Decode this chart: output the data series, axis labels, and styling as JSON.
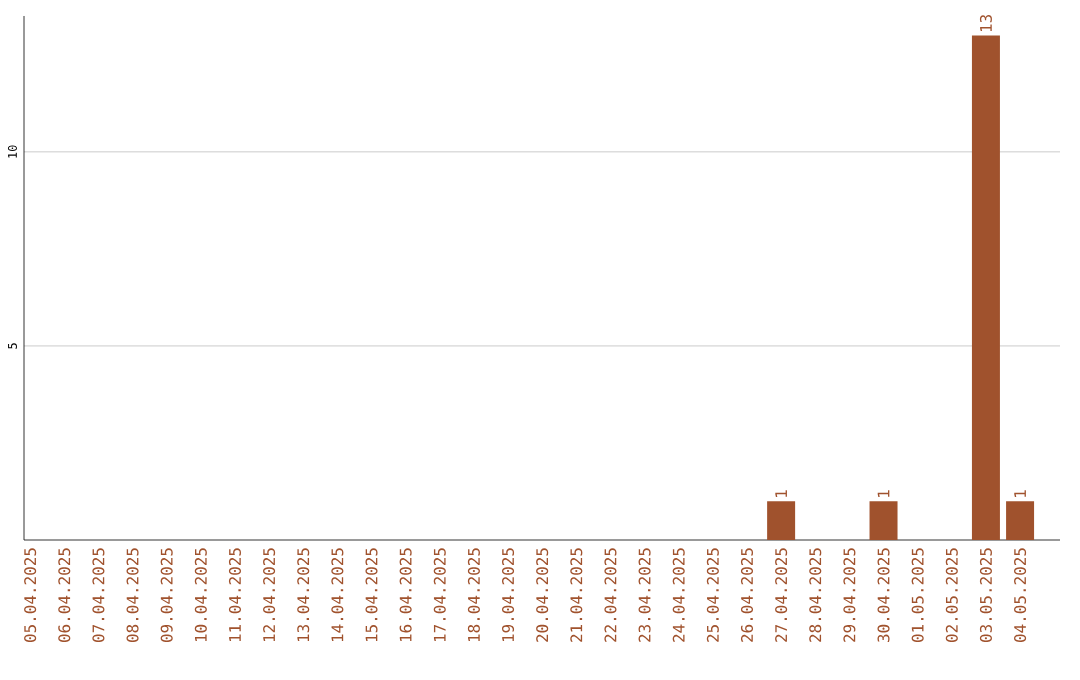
{
  "chart_data": {
    "type": "bar",
    "categories": [
      "05.04.2025",
      "06.04.2025",
      "07.04.2025",
      "08.04.2025",
      "09.04.2025",
      "10.04.2025",
      "11.04.2025",
      "12.04.2025",
      "13.04.2025",
      "14.04.2025",
      "15.04.2025",
      "16.04.2025",
      "17.04.2025",
      "18.04.2025",
      "19.04.2025",
      "20.04.2025",
      "21.04.2025",
      "22.04.2025",
      "23.04.2025",
      "24.04.2025",
      "25.04.2025",
      "26.04.2025",
      "27.04.2025",
      "28.04.2025",
      "29.04.2025",
      "30.04.2025",
      "01.05.2025",
      "02.05.2025",
      "03.05.2025",
      "04.05.2025"
    ],
    "values": [
      0,
      0,
      0,
      0,
      0,
      0,
      0,
      0,
      0,
      0,
      0,
      0,
      0,
      0,
      0,
      0,
      0,
      0,
      0,
      0,
      0,
      0,
      1,
      0,
      0,
      1,
      0,
      0,
      13,
      1
    ],
    "value_labels": [
      null,
      null,
      null,
      null,
      null,
      null,
      null,
      null,
      null,
      null,
      null,
      null,
      null,
      null,
      null,
      null,
      null,
      null,
      null,
      null,
      null,
      null,
      "1",
      null,
      null,
      "1",
      null,
      null,
      "13",
      "1"
    ],
    "color": "#a0522d",
    "ylim": [
      0,
      13.5
    ],
    "yticks": [
      5,
      10
    ],
    "grid": "y"
  }
}
